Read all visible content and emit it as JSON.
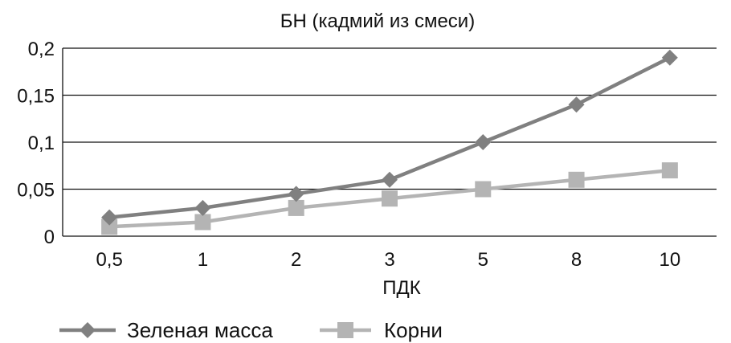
{
  "chart_data": {
    "type": "line",
    "title": "БН (кадмий из смеси)",
    "xlabel": "ПДК",
    "ylabel": "",
    "categories": [
      "0,5",
      "1",
      "2",
      "3",
      "5",
      "8",
      "10"
    ],
    "ylim": [
      0,
      0.2
    ],
    "yticks": [
      "0",
      "0,05",
      "0,1",
      "0,15",
      "0,2"
    ],
    "grid": "horizontal",
    "legend_position": "bottom",
    "series": [
      {
        "name": "Зеленая масса",
        "values": [
          0.02,
          0.03,
          0.045,
          0.06,
          0.1,
          0.14,
          0.19
        ],
        "color": "#808080",
        "marker": "diamond"
      },
      {
        "name": "Корни",
        "values": [
          0.01,
          0.015,
          0.03,
          0.04,
          0.05,
          0.06,
          0.07
        ],
        "color": "#b4b4b4",
        "marker": "square"
      }
    ]
  }
}
